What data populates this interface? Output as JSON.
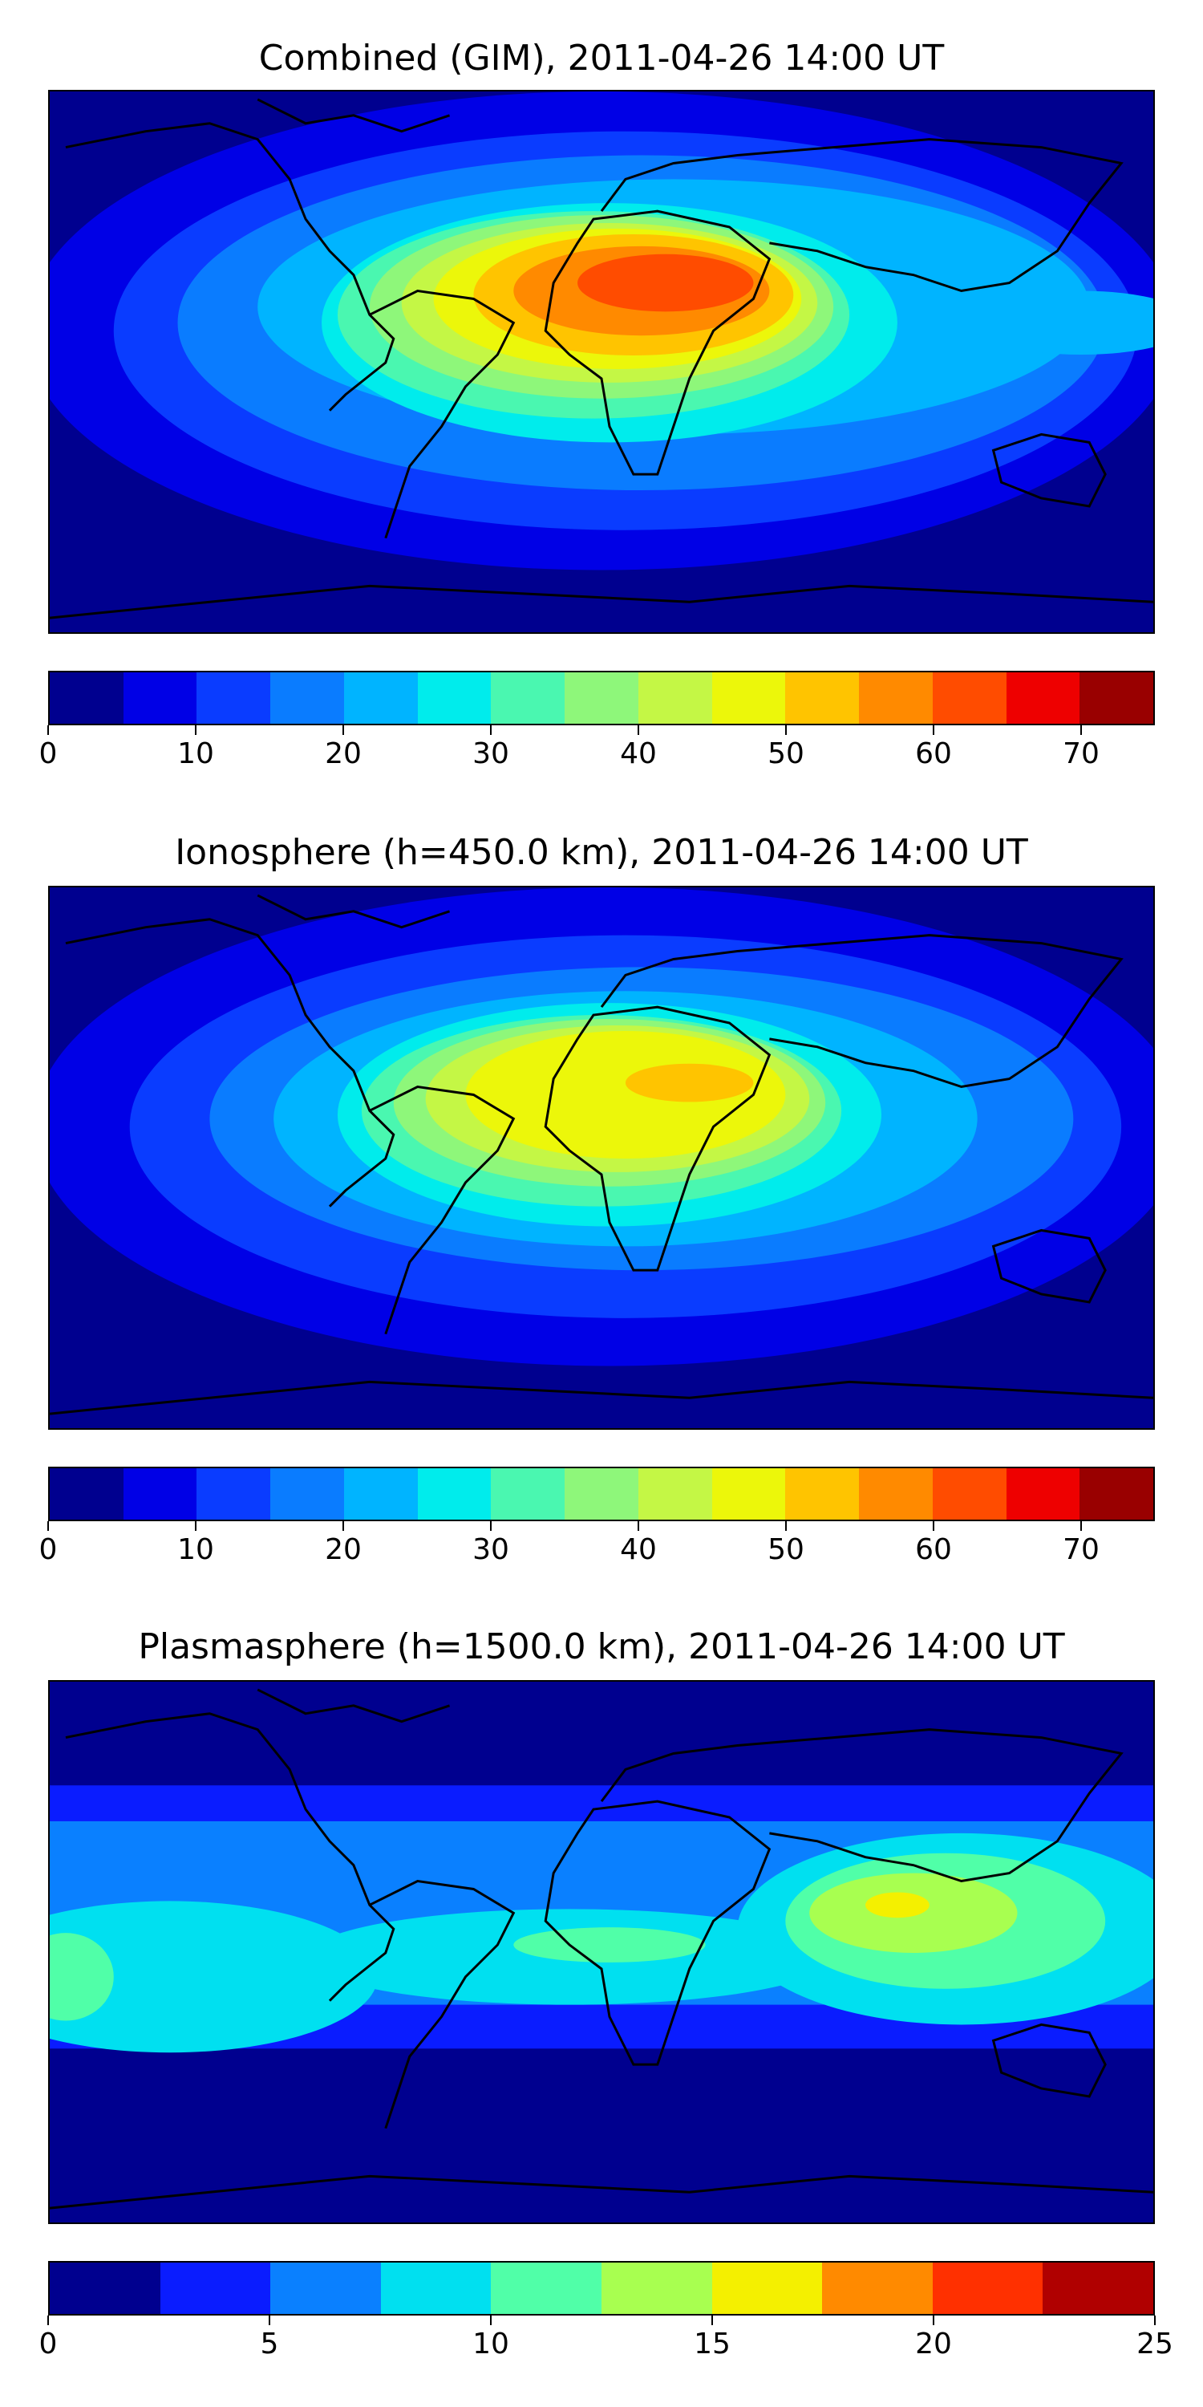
{
  "panels": [
    {
      "title": "Combined (GIM), 2011-04-26 14:00 UT",
      "colorbar": {
        "min": 0,
        "max": 75,
        "step": 5,
        "ticks": [
          "0",
          "10",
          "20",
          "30",
          "40",
          "50",
          "60",
          "70"
        ],
        "tick_values": [
          0,
          10,
          20,
          30,
          40,
          50,
          60,
          70
        ],
        "colors": [
          "#00008f",
          "#0000e6",
          "#0a3cff",
          "#0a7cff",
          "#00b4ff",
          "#00ecec",
          "#4af7b0",
          "#8ef77a",
          "#c4f745",
          "#ecf70a",
          "#ffc400",
          "#ff8a00",
          "#ff4c00",
          "#ee0000",
          "#990000"
        ]
      }
    },
    {
      "title": "Ionosphere  (h=450.0 km), 2011-04-26 14:00 UT",
      "colorbar": {
        "min": 0,
        "max": 75,
        "step": 5,
        "ticks": [
          "0",
          "10",
          "20",
          "30",
          "40",
          "50",
          "60",
          "70"
        ],
        "tick_values": [
          0,
          10,
          20,
          30,
          40,
          50,
          60,
          70
        ],
        "colors": [
          "#00008f",
          "#0000e6",
          "#0a3cff",
          "#0a7cff",
          "#00b4ff",
          "#00ecec",
          "#4af7b0",
          "#8ef77a",
          "#c4f745",
          "#ecf70a",
          "#ffc400",
          "#ff8a00",
          "#ff4c00",
          "#ee0000",
          "#990000"
        ]
      }
    },
    {
      "title": "Plasmasphere (h=1500.0 km), 2011-04-26 14:00 UT",
      "colorbar": {
        "min": 0,
        "max": 25,
        "step": 2.5,
        "ticks": [
          "0",
          "5",
          "10",
          "15",
          "20",
          "25"
        ],
        "tick_values": [
          0,
          5,
          10,
          15,
          20,
          25
        ],
        "colors": [
          "#00008f",
          "#0a1cff",
          "#0a80ff",
          "#00e0f0",
          "#50ffa8",
          "#a8ff50",
          "#f4f000",
          "#ff8a00",
          "#ff3000",
          "#b00000"
        ]
      }
    }
  ]
}
